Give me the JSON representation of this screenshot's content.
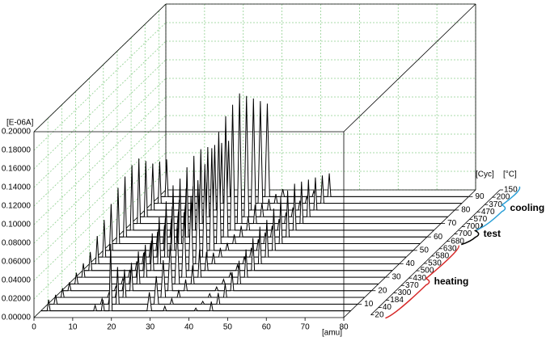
{
  "chart_data": {
    "type": "waterfall",
    "y_label": "[E-06A]",
    "x_label": "[amu]",
    "z_label": "[Cyc]",
    "temperature_label": "[°C]",
    "ylim": [
      0,
      0.2
    ],
    "yticks": [
      {
        "value": 0,
        "label": "0.00000"
      },
      {
        "value": 0.02,
        "label": "0.02000"
      },
      {
        "value": 0.04,
        "label": "0.04000"
      },
      {
        "value": 0.06,
        "label": "0.06000"
      },
      {
        "value": 0.08,
        "label": "0.08000"
      },
      {
        "value": 0.1,
        "label": "0.10000"
      },
      {
        "value": 0.12,
        "label": "0.12000"
      },
      {
        "value": 0.14,
        "label": "0.14000"
      },
      {
        "value": 0.16,
        "label": "0.16000"
      },
      {
        "value": 0.18,
        "label": "0.18000"
      },
      {
        "value": 0.2,
        "label": "0.20000"
      }
    ],
    "xlim": [
      0,
      80
    ],
    "xticks": [
      0,
      10,
      20,
      30,
      40,
      50,
      60,
      70,
      80
    ],
    "zlim": [
      0,
      95
    ],
    "zticks": [
      10,
      20,
      30,
      40,
      50,
      60,
      70,
      80,
      90
    ],
    "temperature_labels": [
      20,
      40,
      184,
      300,
      370,
      430,
      500,
      530,
      580,
      630,
      680,
      700,
      700,
      570,
      470,
      370,
      200,
      150
    ],
    "phases": [
      {
        "label": "heating",
        "color": "#d62828"
      },
      {
        "label": "test",
        "color": "#000000"
      },
      {
        "label": "cooling",
        "color": "#2a9fd6"
      }
    ],
    "amu_points": [
      0,
      1.6,
      2,
      2.4,
      13.6,
      14,
      14.4,
      15.6,
      16,
      16.4,
      17.6,
      18,
      18.4,
      27.4,
      28,
      28.6,
      31.6,
      32,
      32.4,
      39.6,
      40,
      40.4,
      43.6,
      44,
      44.4,
      80
    ],
    "spectra": [
      {
        "cycle": 5,
        "values": [
          0,
          0,
          0.012,
          0,
          0,
          0.006,
          0,
          0,
          0.012,
          0,
          0,
          0.072,
          0,
          0,
          0.02,
          0,
          0,
          0.005,
          0,
          0,
          0.003,
          0,
          0,
          0.01,
          0,
          0
        ]
      },
      {
        "cycle": 10,
        "values": [
          0,
          0,
          0.01,
          0,
          0,
          0.006,
          0,
          0,
          0.01,
          0,
          0,
          0.04,
          0,
          0,
          0.03,
          0,
          0,
          0.006,
          0,
          0,
          0.003,
          0,
          0,
          0.012,
          0,
          0
        ]
      },
      {
        "cycle": 15,
        "values": [
          0,
          0,
          0.01,
          0,
          0,
          0.005,
          0,
          0,
          0.01,
          0,
          0,
          0.03,
          0,
          0,
          0.04,
          0,
          0,
          0.008,
          0,
          0,
          0.004,
          0,
          0,
          0.015,
          0,
          0
        ]
      },
      {
        "cycle": 20,
        "values": [
          0,
          0,
          0.009,
          0,
          0,
          0.005,
          0,
          0,
          0.01,
          0,
          0,
          0.03,
          0,
          0,
          0.05,
          0,
          0,
          0.012,
          0,
          0,
          0.004,
          0,
          0,
          0.02,
          0,
          0
        ]
      },
      {
        "cycle": 25,
        "values": [
          0,
          0,
          0.012,
          0,
          0,
          0.006,
          0,
          0,
          0.012,
          0,
          0,
          0.035,
          0,
          0,
          0.06,
          0,
          0,
          0.02,
          0,
          0,
          0.005,
          0,
          0,
          0.025,
          0,
          0
        ]
      },
      {
        "cycle": 30,
        "values": [
          0,
          0,
          0.015,
          0,
          0,
          0.008,
          0,
          0,
          0.014,
          0,
          0,
          0.035,
          0,
          0,
          0.07,
          0,
          0,
          0.03,
          0,
          0,
          0.005,
          0,
          0,
          0.03,
          0,
          0
        ]
      },
      {
        "cycle": 35,
        "values": [
          0,
          0,
          0.02,
          0,
          0,
          0.01,
          0,
          0,
          0.02,
          0,
          0,
          0.04,
          0,
          0,
          0.08,
          0,
          0,
          0.02,
          0,
          0,
          0.006,
          0,
          0,
          0.035,
          0,
          0
        ]
      },
      {
        "cycle": 40,
        "values": [
          0,
          0,
          0.03,
          0,
          0,
          0.012,
          0,
          0,
          0.025,
          0,
          0,
          0.05,
          0,
          0,
          0.09,
          0,
          0,
          0.012,
          0,
          0,
          0.008,
          0,
          0,
          0.04,
          0,
          0
        ]
      },
      {
        "cycle": 45,
        "values": [
          0,
          0,
          0.04,
          0,
          0,
          0.015,
          0,
          0,
          0.03,
          0,
          0,
          0.06,
          0,
          0,
          0.1,
          0,
          0,
          0.01,
          0,
          0,
          0.01,
          0,
          0,
          0.04,
          0,
          0
        ]
      },
      {
        "cycle": 50,
        "values": [
          0,
          0,
          0.05,
          0,
          0,
          0.02,
          0,
          0,
          0.035,
          0,
          0,
          0.07,
          0,
          0,
          0.11,
          0,
          0,
          0.008,
          0,
          0,
          0.012,
          0,
          0,
          0.045,
          0,
          0
        ]
      },
      {
        "cycle": 55,
        "values": [
          0,
          0,
          0.06,
          0,
          0,
          0.02,
          0,
          0,
          0.04,
          0,
          0,
          0.07,
          0,
          0,
          0.12,
          0,
          0,
          0.01,
          0,
          0,
          0.012,
          0,
          0,
          0.05,
          0,
          0
        ]
      },
      {
        "cycle": 60,
        "values": [
          0,
          0,
          0.065,
          0,
          0,
          0.02,
          0,
          0,
          0.04,
          0,
          0,
          0.075,
          0,
          0,
          0.13,
          0,
          0,
          0.012,
          0,
          0,
          0.012,
          0,
          0,
          0.05,
          0,
          0
        ]
      },
      {
        "cycle": 65,
        "values": [
          0,
          0,
          0.07,
          0,
          0,
          0.02,
          0,
          0,
          0.045,
          0,
          0,
          0.08,
          0,
          0,
          0.135,
          0,
          0,
          0.015,
          0,
          0,
          0.012,
          0,
          0,
          0.05,
          0,
          0
        ]
      },
      {
        "cycle": 70,
        "values": [
          0,
          0,
          0.07,
          0,
          0,
          0.02,
          0,
          0,
          0.04,
          0,
          0,
          0.08,
          0,
          0,
          0.14,
          0,
          0,
          0.02,
          0,
          0,
          0.012,
          0,
          0,
          0.045,
          0,
          0
        ]
      },
      {
        "cycle": 75,
        "values": [
          0,
          0,
          0.06,
          0,
          0,
          0.015,
          0,
          0,
          0.035,
          0,
          0,
          0.075,
          0,
          0,
          0.13,
          0,
          0,
          0.015,
          0,
          0,
          0.01,
          0,
          0,
          0.04,
          0,
          0
        ]
      },
      {
        "cycle": 80,
        "values": [
          0,
          0,
          0.05,
          0,
          0,
          0.012,
          0,
          0,
          0.03,
          0,
          0,
          0.07,
          0,
          0,
          0.12,
          0,
          0,
          0.012,
          0,
          0,
          0.01,
          0,
          0,
          0.035,
          0,
          0
        ]
      },
      {
        "cycle": 85,
        "values": [
          0,
          0,
          0.045,
          0,
          0,
          0.01,
          0,
          0,
          0.025,
          0,
          0,
          0.065,
          0,
          0,
          0.11,
          0,
          0,
          0.01,
          0,
          0,
          0.008,
          0,
          0,
          0.03,
          0,
          0
        ]
      },
      {
        "cycle": 90,
        "values": [
          0,
          0,
          0.04,
          0,
          0,
          0.01,
          0,
          0,
          0.02,
          0,
          0,
          0.06,
          0,
          0,
          0.1,
          0,
          0,
          0.008,
          0,
          0,
          0.006,
          0,
          0,
          0.025,
          0,
          0
        ]
      }
    ]
  }
}
